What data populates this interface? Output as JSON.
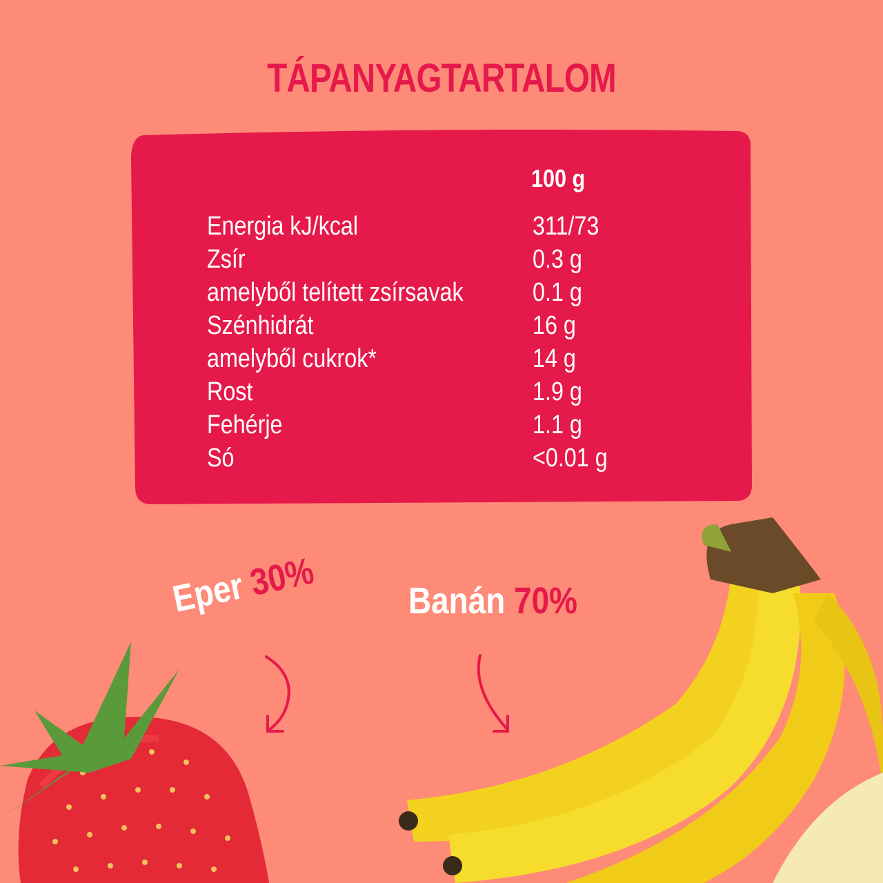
{
  "title": "TÁPANYAGTARTALOM",
  "table": {
    "column_header": "100 g",
    "rows": [
      {
        "label": "Energia kJ/kcal",
        "value": "311/73"
      },
      {
        "label": "Zsír",
        "value": "0.3 g"
      },
      {
        "label": "amelyből telített zsírsavak",
        "value": "0.1 g"
      },
      {
        "label": "Szénhidrát",
        "value": "16 g"
      },
      {
        "label": "amelyből cukrok*",
        "value": "14 g"
      },
      {
        "label": "Rost",
        "value": "1.9 g"
      },
      {
        "label": "Fehérje",
        "value": "1.1 g"
      },
      {
        "label": "Só",
        "value": "<0.01 g"
      }
    ]
  },
  "ingredients": [
    {
      "name": "Eper",
      "percent": "30%"
    },
    {
      "name": "Banán",
      "percent": "70%"
    }
  ],
  "colors": {
    "background": "#fe8a78",
    "accent": "#e5194a",
    "text": "#ffffff"
  }
}
